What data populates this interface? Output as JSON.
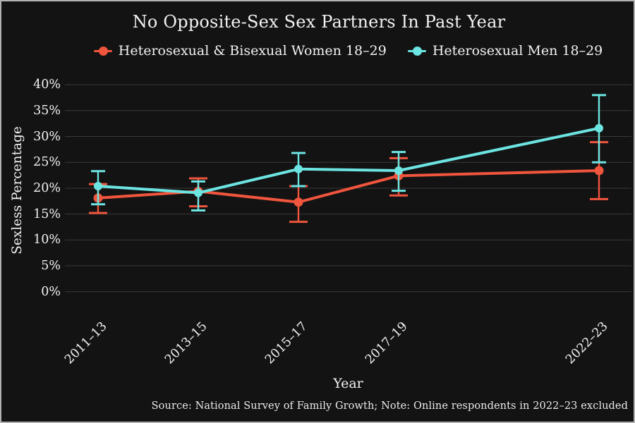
{
  "chart_data": {
    "type": "line",
    "title": "No Opposite-Sex Sex Partners In Past Year",
    "xlabel": "Year",
    "ylabel": "Sexless Percentage",
    "note": "Source: National Survey of Family Growth; Note: Online respondents in 2022–23 excluded",
    "categories": [
      "2011–13",
      "2013–15",
      "2015–17",
      "2017–19",
      "2022–23"
    ],
    "x_years": [
      2012,
      2014,
      2016,
      2018,
      2022
    ],
    "yticks": [
      "0%",
      "5%",
      "10%",
      "15%",
      "20%",
      "25%",
      "30%",
      "35%",
      "40%"
    ],
    "ytick_values": [
      0,
      5,
      10,
      15,
      20,
      25,
      30,
      35,
      40
    ],
    "ylim": [
      0,
      42
    ],
    "grid": "horizontal",
    "legend_position": "top",
    "background_color": "#131313",
    "grid_color": "#3a3a3a",
    "series": [
      {
        "name": "Heterosexual & Bisexual Women 18–29",
        "color": "#f0553d",
        "values": [
          18.1,
          19.4,
          17.3,
          22.4,
          23.4
        ],
        "err_low": [
          15.2,
          16.5,
          13.5,
          18.6,
          17.9
        ],
        "err_high": [
          20.8,
          21.9,
          20.4,
          25.8,
          28.9
        ]
      },
      {
        "name": "Heterosexual Men 18–29",
        "color": "#6ce5e2",
        "values": [
          20.4,
          19.1,
          23.7,
          23.4,
          31.6
        ],
        "err_low": [
          16.9,
          15.7,
          20.4,
          19.5,
          25.0
        ],
        "err_high": [
          23.3,
          21.3,
          26.8,
          27.0,
          38.0
        ]
      }
    ]
  }
}
